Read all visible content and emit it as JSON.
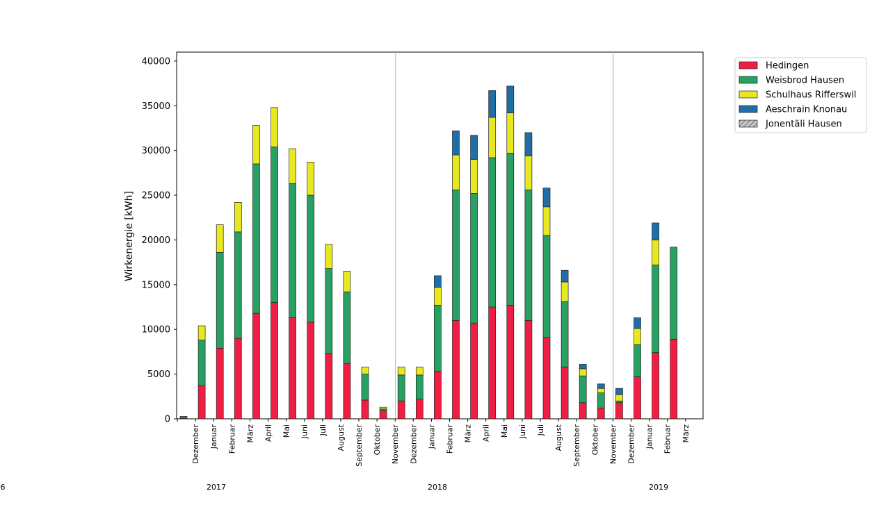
{
  "chart_data": {
    "type": "bar",
    "stacked": true,
    "ylabel": "Wirkenergie [kWh]",
    "ylim": [
      0,
      41000
    ],
    "yticks": [
      0,
      5000,
      10000,
      15000,
      20000,
      25000,
      30000,
      35000,
      40000
    ],
    "ytick_labels": [
      "0",
      "5000",
      "10000",
      "15000",
      "20000",
      "25000",
      "30000",
      "35000",
      "40000"
    ],
    "categories": [
      "",
      "Dezember",
      "Januar",
      "Februar",
      "März",
      "April",
      "Mai",
      "Juni",
      "Juli",
      "August",
      "September",
      "Oktober",
      "November",
      "Dezember",
      "Januar",
      "Februar",
      "März",
      "April",
      "Mai",
      "Juni",
      "Juli",
      "August",
      "September",
      "Oktober",
      "November",
      "Dezember",
      "Januar",
      "Februar"
    ],
    "xtick_labels": [
      "Dezember",
      "Januar",
      "Februar",
      "März",
      "April",
      "Mai",
      "Juni",
      "Juli",
      "August",
      "September",
      "Oktober",
      "November",
      "Dezember",
      "Januar",
      "Februar",
      "März",
      "April",
      "Mai",
      "Juni",
      "Juli",
      "August",
      "September",
      "Oktober",
      "November",
      "Dezember",
      "Januar",
      "Februar",
      "März"
    ],
    "year_labels": [
      "6",
      "2017",
      "2018",
      "2019"
    ],
    "year_separators_after_month_index": [
      11,
      23
    ],
    "series": [
      {
        "name": "Hedingen",
        "color": "#f01e42",
        "hatch": false,
        "values": [
          80,
          3700,
          7900,
          9000,
          11800,
          13000,
          11300,
          10800,
          7300,
          6200,
          2100,
          900,
          2000,
          2200,
          5300,
          11000,
          10700,
          12500,
          12700,
          11000,
          9100,
          5800,
          1800,
          1200,
          1800,
          4700,
          7400,
          8900
        ]
      },
      {
        "name": "Weisbrod Hausen",
        "color": "#28a064",
        "hatch": false,
        "values": [
          200,
          5100,
          10700,
          11900,
          16700,
          17400,
          15000,
          14200,
          9500,
          8000,
          2900,
          200,
          2900,
          2700,
          7400,
          14600,
          14500,
          16700,
          17000,
          14600,
          11400,
          7300,
          3000,
          1700,
          200,
          3600,
          9800,
          10300
        ]
      },
      {
        "name": "Schulhaus Rifferswil",
        "color": "#e8e820",
        "hatch": false,
        "values": [
          0,
          1600,
          3100,
          3300,
          4300,
          4400,
          3900,
          3700,
          2700,
          2300,
          800,
          200,
          900,
          900,
          2000,
          3900,
          3800,
          4500,
          4500,
          3800,
          3200,
          2200,
          800,
          500,
          700,
          1800,
          2800,
          0
        ]
      },
      {
        "name": "Aeschrain Knonau",
        "color": "#1f6ea8",
        "hatch": false,
        "values": [
          0,
          0,
          0,
          0,
          0,
          0,
          0,
          0,
          0,
          0,
          0,
          0,
          0,
          0,
          1300,
          2700,
          2700,
          3000,
          3000,
          2600,
          2100,
          1300,
          500,
          500,
          700,
          1200,
          1900,
          0
        ]
      },
      {
        "name": "Jonentäli Hausen",
        "color": "#c8c8c8",
        "hatch": true,
        "values": [
          0,
          0,
          0,
          0,
          0,
          0,
          0,
          0,
          0,
          0,
          0,
          0,
          0,
          0,
          0,
          0,
          0,
          0,
          0,
          0,
          0,
          0,
          0,
          0,
          0,
          0,
          0,
          0
        ]
      }
    ],
    "legend_position": "outside-top-right",
    "grid": false
  }
}
